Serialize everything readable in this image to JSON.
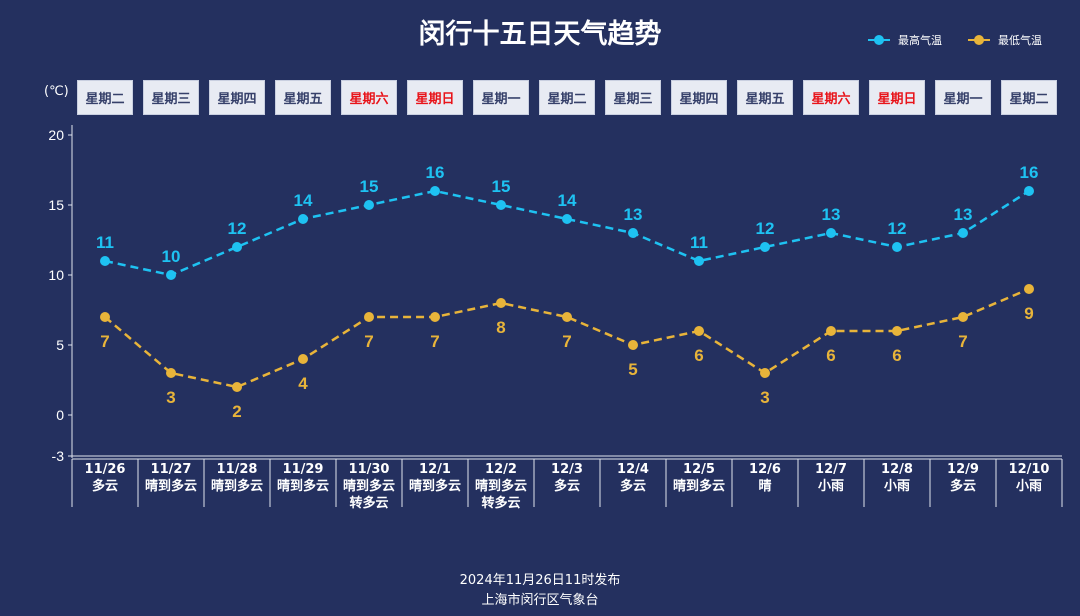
{
  "chart_data": {
    "type": "line",
    "title": "闵行十五日天气趋势",
    "ylabel": "(℃)",
    "ylim": [
      -3,
      20
    ],
    "yticks": [
      20,
      15,
      10,
      5,
      0,
      -3
    ],
    "legend_position": "top-right",
    "categories": [
      "11/26",
      "11/27",
      "11/28",
      "11/29",
      "11/30",
      "12/1",
      "12/2",
      "12/3",
      "12/4",
      "12/5",
      "12/6",
      "12/7",
      "12/8",
      "12/9",
      "12/10"
    ],
    "weekdays": [
      "星期二",
      "星期三",
      "星期四",
      "星期五",
      "星期六",
      "星期日",
      "星期一",
      "星期二",
      "星期三",
      "星期四",
      "星期五",
      "星期六",
      "星期日",
      "星期一",
      "星期二"
    ],
    "weekend_flags": [
      false,
      false,
      false,
      false,
      true,
      true,
      false,
      false,
      false,
      false,
      false,
      true,
      true,
      false,
      false
    ],
    "weather": [
      "多云",
      "晴到多云",
      "晴到多云",
      "晴到多云",
      "晴到多云\n转多云",
      "晴到多云",
      "晴到多云\n转多云",
      "多云",
      "多云",
      "晴到多云",
      "晴",
      "小雨",
      "小雨",
      "多云",
      "小雨"
    ],
    "series": [
      {
        "name": "最高气温",
        "color": "#1ec2f2",
        "values": [
          11,
          10,
          12,
          14,
          15,
          16,
          15,
          14,
          13,
          11,
          12,
          13,
          12,
          13,
          16
        ]
      },
      {
        "name": "最低气温",
        "color": "#e8b43a",
        "values": [
          7,
          3,
          2,
          4,
          7,
          7,
          8,
          7,
          5,
          6,
          3,
          6,
          6,
          7,
          9
        ]
      }
    ]
  },
  "footer": {
    "line1": "2024年11月26日11时发布",
    "line2": "上海市闵行区气象台"
  },
  "colors": {
    "background": "#24305f",
    "weekend": "#e8141a"
  }
}
